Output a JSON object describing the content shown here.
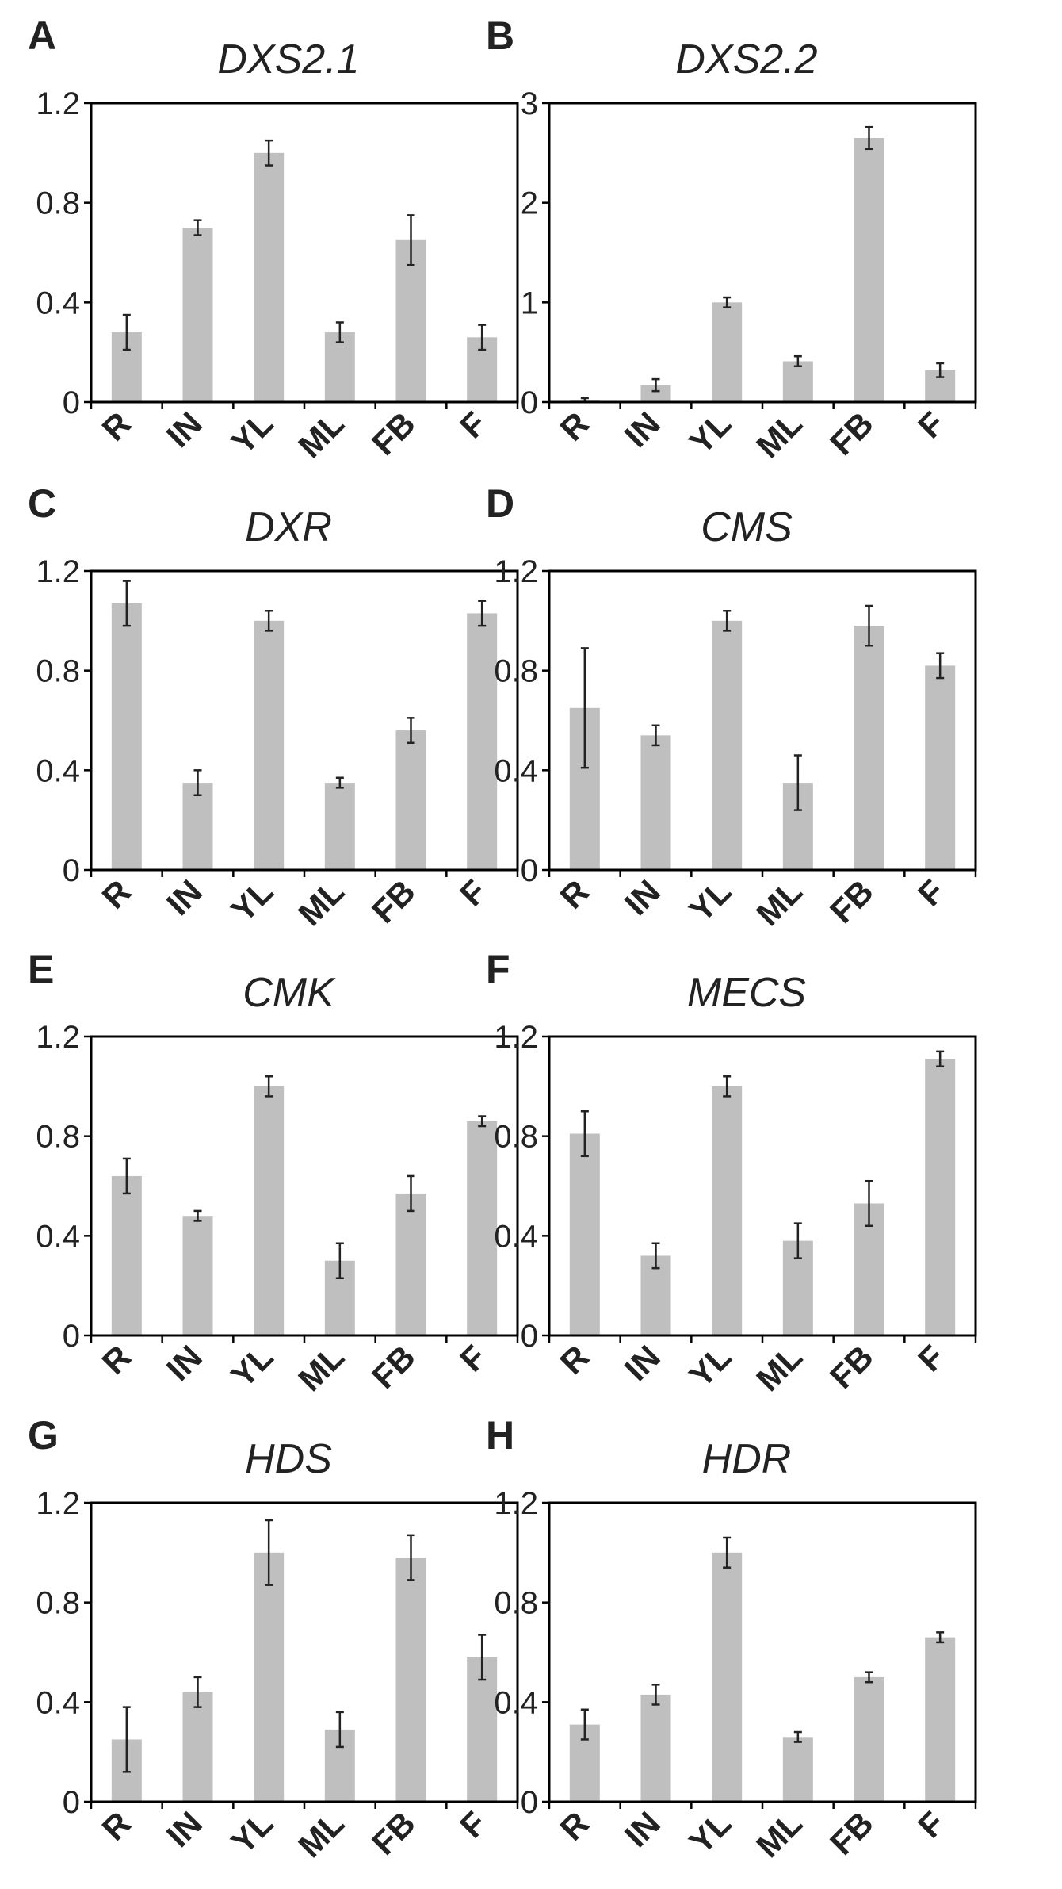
{
  "figure": {
    "bar_color": "#bfbfbf",
    "axis_color": "#000000",
    "text_color": "#222222"
  },
  "chart_data": [
    {
      "id": "A",
      "panel_label": "A",
      "type": "bar",
      "title": "DXS2.1",
      "categories": [
        "R",
        "IN",
        "YL",
        "ML",
        "FB",
        "F"
      ],
      "values": [
        0.28,
        0.7,
        1.0,
        0.28,
        0.65,
        0.26
      ],
      "errors": [
        0.07,
        0.03,
        0.05,
        0.04,
        0.1,
        0.05
      ],
      "ylim": [
        0,
        1.2
      ],
      "yticks": [
        0,
        0.4,
        0.8,
        1.2
      ],
      "ytick_labels": [
        "0",
        "0.4",
        "0.8",
        "1.2"
      ],
      "xlabel": "",
      "ylabel": ""
    },
    {
      "id": "B",
      "panel_label": "B",
      "type": "bar",
      "title": "DXS2.2",
      "categories": [
        "R",
        "IN",
        "YL",
        "ML",
        "FB",
        "F"
      ],
      "values": [
        0.02,
        0.17,
        1.0,
        0.41,
        2.65,
        0.32
      ],
      "errors": [
        0.02,
        0.06,
        0.05,
        0.05,
        0.11,
        0.07
      ],
      "ylim": [
        0,
        3
      ],
      "yticks": [
        0,
        1,
        2,
        3
      ],
      "ytick_labels": [
        "0",
        "1",
        "2",
        "3"
      ],
      "xlabel": "",
      "ylabel": ""
    },
    {
      "id": "C",
      "panel_label": "C",
      "type": "bar",
      "title": "DXR",
      "categories": [
        "R",
        "IN",
        "YL",
        "ML",
        "FB",
        "F"
      ],
      "values": [
        1.07,
        0.35,
        1.0,
        0.35,
        0.56,
        1.03
      ],
      "errors": [
        0.09,
        0.05,
        0.04,
        0.02,
        0.05,
        0.05
      ],
      "ylim": [
        0,
        1.2
      ],
      "yticks": [
        0,
        0.4,
        0.8,
        1.2
      ],
      "ytick_labels": [
        "0",
        "0.4",
        "0.8",
        "1.2"
      ],
      "xlabel": "",
      "ylabel": ""
    },
    {
      "id": "D",
      "panel_label": "D",
      "type": "bar",
      "title": "CMS",
      "categories": [
        "R",
        "IN",
        "YL",
        "ML",
        "FB",
        "F"
      ],
      "values": [
        0.65,
        0.54,
        1.0,
        0.35,
        0.98,
        0.82
      ],
      "errors": [
        0.24,
        0.04,
        0.04,
        0.11,
        0.08,
        0.05
      ],
      "ylim": [
        0,
        1.2
      ],
      "yticks": [
        0,
        0.4,
        0.8,
        1.2
      ],
      "ytick_labels": [
        "0",
        "0.4",
        "0.8",
        "1.2"
      ],
      "xlabel": "",
      "ylabel": ""
    },
    {
      "id": "E",
      "panel_label": "E",
      "type": "bar",
      "title": "CMK",
      "categories": [
        "R",
        "IN",
        "YL",
        "ML",
        "FB",
        "F"
      ],
      "values": [
        0.64,
        0.48,
        1.0,
        0.3,
        0.57,
        0.86
      ],
      "errors": [
        0.07,
        0.02,
        0.04,
        0.07,
        0.07,
        0.02
      ],
      "ylim": [
        0,
        1.2
      ],
      "yticks": [
        0,
        0.4,
        0.8,
        1.2
      ],
      "ytick_labels": [
        "0",
        "0.4",
        "0.8",
        "1.2"
      ],
      "xlabel": "",
      "ylabel": ""
    },
    {
      "id": "F",
      "panel_label": "F",
      "type": "bar",
      "title": "MECS",
      "categories": [
        "R",
        "IN",
        "YL",
        "ML",
        "FB",
        "F"
      ],
      "values": [
        0.81,
        0.32,
        1.0,
        0.38,
        0.53,
        1.11
      ],
      "errors": [
        0.09,
        0.05,
        0.04,
        0.07,
        0.09,
        0.03
      ],
      "ylim": [
        0,
        1.2
      ],
      "yticks": [
        0,
        0.4,
        0.8,
        1.2
      ],
      "ytick_labels": [
        "0",
        "0.4",
        "0.8",
        "1.2"
      ],
      "xlabel": "",
      "ylabel": ""
    },
    {
      "id": "G",
      "panel_label": "G",
      "type": "bar",
      "title": "HDS",
      "categories": [
        "R",
        "IN",
        "YL",
        "ML",
        "FB",
        "F"
      ],
      "values": [
        0.25,
        0.44,
        1.0,
        0.29,
        0.98,
        0.58
      ],
      "errors": [
        0.13,
        0.06,
        0.13,
        0.07,
        0.09,
        0.09
      ],
      "ylim": [
        0,
        1.2
      ],
      "yticks": [
        0,
        0.4,
        0.8,
        1.2
      ],
      "ytick_labels": [
        "0",
        "0.4",
        "0.8",
        "1.2"
      ],
      "xlabel": "",
      "ylabel": ""
    },
    {
      "id": "H",
      "panel_label": "H",
      "type": "bar",
      "title": "HDR",
      "categories": [
        "R",
        "IN",
        "YL",
        "ML",
        "FB",
        "F"
      ],
      "values": [
        0.31,
        0.43,
        1.0,
        0.26,
        0.5,
        0.66
      ],
      "errors": [
        0.06,
        0.04,
        0.06,
        0.02,
        0.02,
        0.02
      ],
      "ylim": [
        0,
        1.2
      ],
      "yticks": [
        0,
        0.4,
        0.8,
        1.2
      ],
      "ytick_labels": [
        "0",
        "0.4",
        "0.8",
        "1.2"
      ],
      "xlabel": "",
      "ylabel": ""
    }
  ]
}
